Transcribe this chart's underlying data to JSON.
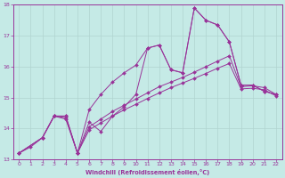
{
  "xlabel": "Windchill (Refroidissement éolien,°C)",
  "xlim": [
    -0.5,
    22.5
  ],
  "ylim": [
    13,
    18
  ],
  "yticks": [
    13,
    14,
    15,
    16,
    17,
    18
  ],
  "xticks": [
    0,
    1,
    2,
    3,
    4,
    5,
    6,
    7,
    8,
    9,
    10,
    11,
    12,
    13,
    14,
    15,
    16,
    17,
    18,
    19,
    20,
    21,
    22
  ],
  "bg_color": "#c5eae6",
  "line_color": "#993399",
  "grid_color": "#b0d4d0",
  "series1_x": [
    0,
    1,
    2,
    3,
    4,
    5,
    6,
    7,
    8,
    9,
    10,
    11,
    12,
    13,
    14,
    15,
    16,
    17,
    18,
    19,
    20,
    21,
    22
  ],
  "series1_y": [
    13.2,
    13.4,
    13.7,
    14.4,
    14.4,
    13.2,
    14.2,
    13.9,
    14.4,
    14.7,
    15.1,
    16.6,
    16.7,
    15.9,
    15.8,
    17.9,
    17.5,
    17.35,
    16.8,
    15.4,
    15.4,
    15.2,
    15.1
  ],
  "series2_x": [
    0,
    2,
    3,
    4,
    5,
    6,
    7,
    8,
    9,
    10,
    11,
    12,
    13,
    14,
    15,
    16,
    17,
    18,
    19,
    20,
    21,
    22
  ],
  "series2_y": [
    13.2,
    13.7,
    14.4,
    14.4,
    13.2,
    14.6,
    15.1,
    15.5,
    15.8,
    16.05,
    16.6,
    16.7,
    15.9,
    15.8,
    17.9,
    17.5,
    17.35,
    16.8,
    15.4,
    15.4,
    15.2,
    15.1
  ],
  "series3_x": [
    0,
    2,
    3,
    4,
    5,
    6,
    7,
    8,
    9,
    10,
    11,
    12,
    13,
    14,
    15,
    16,
    17,
    18,
    19,
    20,
    21,
    22
  ],
  "series3_y": [
    13.2,
    13.7,
    14.4,
    14.35,
    13.2,
    14.05,
    14.3,
    14.55,
    14.75,
    14.95,
    15.15,
    15.35,
    15.5,
    15.65,
    15.82,
    16.0,
    16.18,
    16.35,
    15.35,
    15.38,
    15.32,
    15.1
  ],
  "series4_x": [
    0,
    2,
    3,
    4,
    5,
    6,
    7,
    8,
    9,
    10,
    11,
    12,
    13,
    14,
    15,
    16,
    17,
    18,
    19,
    20,
    21,
    22
  ],
  "series4_y": [
    13.2,
    13.7,
    14.4,
    14.3,
    13.2,
    13.95,
    14.18,
    14.4,
    14.6,
    14.78,
    14.97,
    15.15,
    15.32,
    15.47,
    15.62,
    15.78,
    15.95,
    16.1,
    15.28,
    15.3,
    15.25,
    15.05
  ]
}
